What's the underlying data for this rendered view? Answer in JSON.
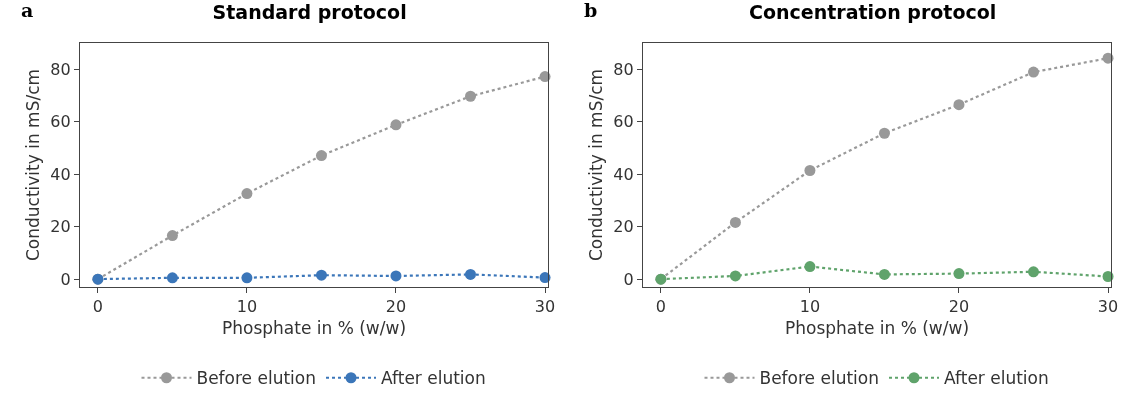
{
  "chart_data": [
    {
      "type": "line",
      "title": "Standard protocol",
      "xlabel": "Phosphate in % (w/w)",
      "ylabel": "Conductivity in mS/cm",
      "annotations": [
        "a"
      ],
      "x": [
        0,
        5,
        10,
        15,
        20,
        25,
        30
      ],
      "series": [
        {
          "name": "Before elution",
          "color": "#999999",
          "values": [
            0,
            16.6,
            32.6,
            47.1,
            58.8,
            69.7,
            77.2
          ]
        },
        {
          "name": "After elution",
          "color": "#3b76b9",
          "values": [
            0,
            0.5,
            0.5,
            1.5,
            1.2,
            1.8,
            0.6
          ]
        }
      ],
      "xlim": [
        -1.2,
        30.2
      ],
      "xticks": [
        0,
        10,
        20,
        30
      ],
      "ylim": [
        -3,
        90
      ],
      "yticks": [
        0,
        20,
        40,
        60,
        80
      ],
      "grid": false,
      "legend": "bottom",
      "marker": "circle",
      "line_style": "dotted"
    },
    {
      "type": "line",
      "title": "Concentration protocol",
      "xlabel": "Phosphate in % (w/w)",
      "ylabel": "Conductivity in mS/cm",
      "annotations": [
        "b"
      ],
      "x": [
        0,
        5,
        10,
        15,
        20,
        25,
        30
      ],
      "series": [
        {
          "name": "Before elution",
          "color": "#999999",
          "values": [
            0,
            21.6,
            41.4,
            55.6,
            66.5,
            78.9,
            84.2
          ]
        },
        {
          "name": "After elution",
          "color": "#5fa36b",
          "values": [
            0,
            1.2,
            4.8,
            1.8,
            2.1,
            2.8,
            1.0
          ]
        }
      ],
      "xlim": [
        -1.2,
        30.2
      ],
      "xticks": [
        0,
        10,
        20,
        30
      ],
      "ylim": [
        -3,
        90
      ],
      "yticks": [
        0,
        20,
        40,
        60,
        80
      ],
      "grid": false,
      "legend": "bottom",
      "marker": "circle",
      "line_style": "dotted"
    }
  ]
}
